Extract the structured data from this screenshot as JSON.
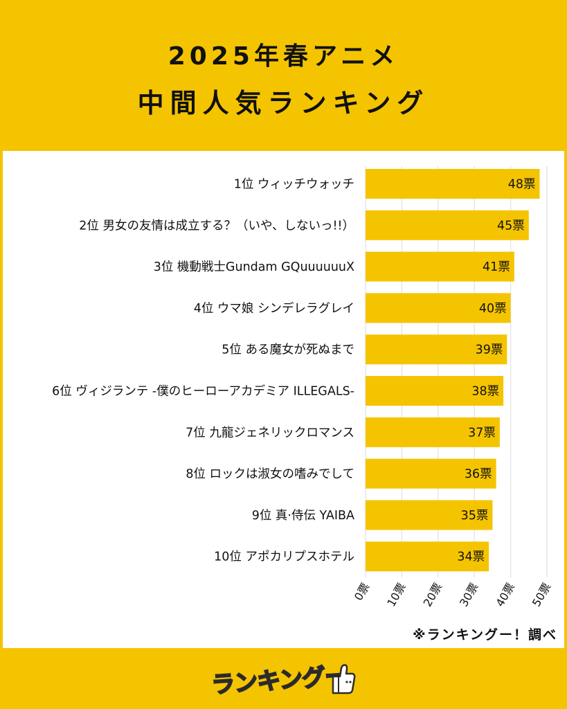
{
  "title": {
    "line1": "2025年春アニメ",
    "line2": "中間人気ランキング"
  },
  "source": "※ランキングー！調べ",
  "logo": {
    "text": "ランキングー",
    "icon": "thumbs-up-mascot-icon"
  },
  "colors": {
    "background": "#F5C400",
    "bar": "#F5C400",
    "panel": "#FFFFFF",
    "text": "#111111",
    "grid": "#E6E6E6"
  },
  "chart_data": {
    "type": "bar",
    "orientation": "horizontal",
    "categories": [
      "1位 ウィッチウォッチ",
      "2位 男女の友情は成立する？（いや、しないっ!!）",
      "3位 機動戦士Gundam GQuuuuuuX",
      "4位 ウマ娘 シンデレラグレイ",
      "5位 ある魔女が死ぬまで",
      "6位 ヴィジランテ -僕のヒーローアカデミア ILLEGALS-",
      "7位 九龍ジェネリックロマンス",
      "8位 ロックは淑女の嗜みでして",
      "9位 真·侍伝 YAIBA",
      "10位 アポカリプスホテル"
    ],
    "values": [
      48,
      45,
      41,
      40,
      39,
      38,
      37,
      36,
      35,
      34
    ],
    "data_labels": [
      "48票",
      "45票",
      "41票",
      "40票",
      "39票",
      "38票",
      "37票",
      "36票",
      "35票",
      "34票"
    ],
    "x_ticks": [
      "0票",
      "10票",
      "20票",
      "30票",
      "40票",
      "50票"
    ],
    "x_tick_values": [
      0,
      10,
      20,
      30,
      40,
      50
    ],
    "xlim": [
      0,
      50
    ],
    "grid": true
  }
}
